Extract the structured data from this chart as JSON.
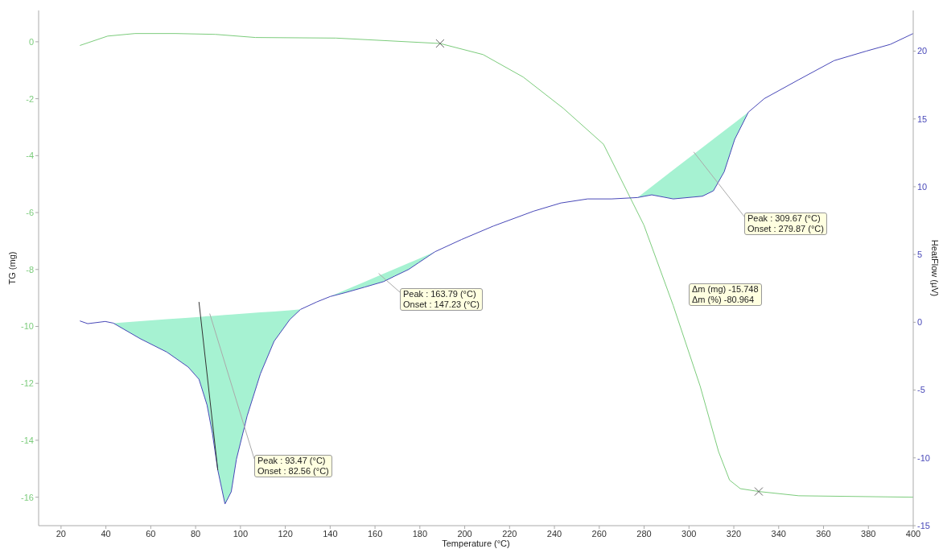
{
  "chart_data": {
    "type": "line",
    "xlabel": "Temperature (°C)",
    "ylabel": "TG (mg)",
    "y2label": "HeatFlow (µV)",
    "xlim": [
      10,
      400
    ],
    "xticks": [
      20,
      40,
      60,
      80,
      100,
      120,
      140,
      160,
      180,
      200,
      220,
      240,
      260,
      280,
      300,
      320,
      340,
      360,
      380,
      400
    ],
    "ylim": [
      -17,
      1.1
    ],
    "yticks": [
      -16,
      -14,
      -12,
      -10,
      -8,
      -6,
      -4,
      -2,
      0
    ],
    "y2lim": [
      -15,
      23
    ],
    "y2ticks": [
      -15,
      -10,
      -5,
      0,
      5,
      10,
      15,
      20
    ],
    "series": [
      {
        "color": "#7ccc7c",
        "x": [
          28.4,
          40.8,
          53,
          71,
          88.8,
          106.7,
          142.6,
          189,
          208.2,
          226.1,
          244,
          261.9,
          279.9,
          293,
          305,
          313.2,
          318.1,
          322.9,
          331.1,
          349,
          400
        ],
        "values": [
          -0.13,
          0.2,
          0.29,
          0.29,
          0.26,
          0.15,
          0.13,
          -0.06,
          -0.45,
          -1.24,
          -2.34,
          -3.6,
          -6.44,
          -9.27,
          -12.1,
          -14.4,
          -15.4,
          -15.7,
          -15.8,
          -15.95,
          -16.0
        ]
      },
      {
        "axis": "y2",
        "color": "#4848b8",
        "x": [
          28.4,
          31.9,
          39.7,
          43.3,
          55.2,
          67.2,
          76.7,
          81.5,
          85.1,
          87.5,
          89.9,
          93.1,
          95.9,
          98.2,
          103,
          108.9,
          115,
          122,
          126.8,
          134,
          140,
          147,
          155.5,
          163.8,
          168.7,
          175,
          179.5,
          186.7,
          198.5,
          212.8,
          230.8,
          242.9,
          254.8,
          265.5,
          277,
          283.4,
          293,
          306,
          310.9,
          315.7,
          320.4,
          326.5,
          333.6,
          349,
          364.7,
          379,
          389.8,
          400
        ],
        "values": [
          0.1,
          -0.1,
          0.06,
          -0.06,
          -1.2,
          -2.2,
          -3.3,
          -4.2,
          -6.1,
          -8.2,
          -10.9,
          -13.4,
          -12.5,
          -10.1,
          -6.9,
          -3.8,
          -1.4,
          0.2,
          0.95,
          1.5,
          1.9,
          2.2,
          2.6,
          3.0,
          3.4,
          3.9,
          4.4,
          5.2,
          6.1,
          7.1,
          8.2,
          8.8,
          9.1,
          9.1,
          9.2,
          9.4,
          9.1,
          9.3,
          9.7,
          11.1,
          13.5,
          15.5,
          16.5,
          17.9,
          19.3,
          20,
          20.5,
          21.3
        ],
        "lower": [
          null,
          null,
          null,
          -0.06,
          -1.2,
          -2.2,
          -3.3,
          -4.2,
          -6.1,
          -8.2,
          -10.9,
          -13.4,
          -12.5,
          -10.1,
          -6.9,
          -3.8,
          -1.4,
          0.2,
          0.95,
          null,
          1.9,
          2.2,
          2.6,
          3.0,
          3.4,
          3.9,
          4.4,
          5.2,
          null,
          null,
          null,
          null,
          null,
          null,
          9.2,
          9.4,
          9.1,
          9.3,
          9.7,
          11.1,
          13.5,
          15.5,
          null,
          null,
          null,
          null,
          null,
          null
        ],
        "upper": [
          null,
          null,
          null,
          -0.06,
          0.08,
          0.23,
          0.34,
          0.4,
          0.45,
          0.47,
          0.5,
          0.54,
          0.57,
          0.6,
          0.66,
          0.73,
          0.8,
          0.89,
          0.95,
          null,
          1.9,
          2.39,
          2.99,
          3.58,
          3.92,
          4.37,
          4.69,
          5.2,
          null,
          null,
          null,
          null,
          null,
          null,
          9.2,
          10.01,
          11.24,
          12.89,
          13.51,
          14.12,
          14.72,
          15.5,
          null,
          null,
          null,
          null,
          null,
          null
        ]
      },
      {
        "axis": "y2",
        "color": "#333333",
        "x": [
          81.5,
          89.9
        ],
        "values": [
          1.5,
          -10.9
        ]
      },
      {
        "type": "scatter",
        "marker": "cross",
        "color": "#666666",
        "x": [
          189,
          331.1
        ],
        "values": [
          -0.06,
          -15.8
        ]
      }
    ],
    "annotations": [
      {
        "text": "Peak : 93.47 (°C)\nOnset : 82.56 (°C)",
        "x": 86.3,
        "y": -9.55
      },
      {
        "text": "Peak : 163.79 (°C)\nOnset : 147.23 (°C)",
        "x": 161.6,
        "y": -8.14
      },
      {
        "text": "Peak : 309.67 (°C)\nOnset : 279.87 (°C)",
        "x": 302.1,
        "y": -3.87
      },
      "Δm (mg) -15.748\nΔm (%) -80.964"
    ]
  }
}
